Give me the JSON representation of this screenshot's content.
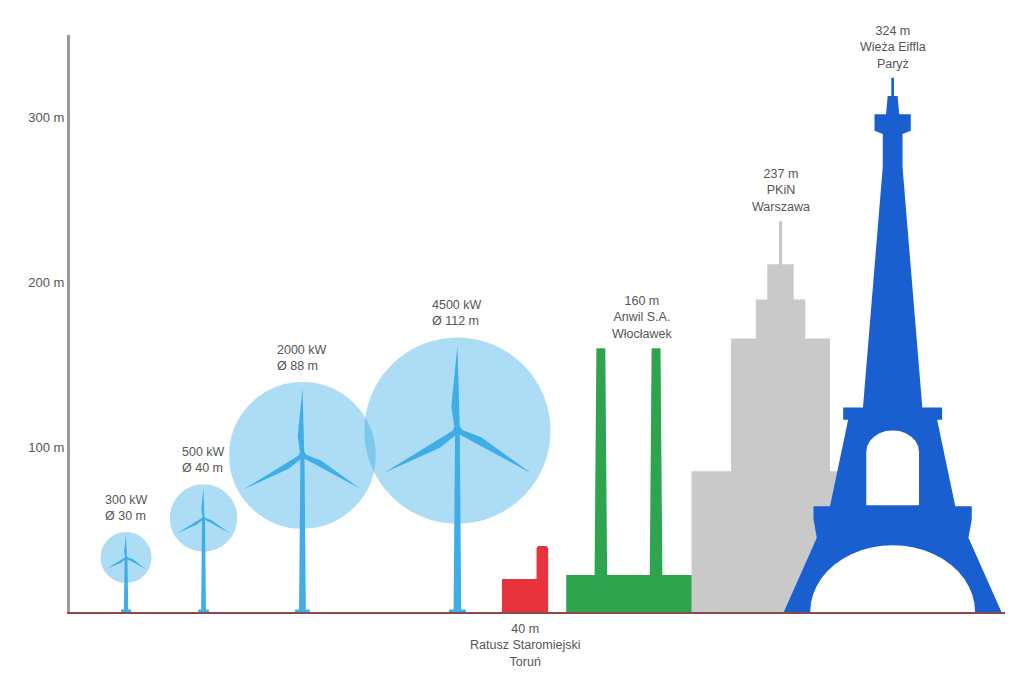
{
  "chart_data": {
    "type": "height_comparison",
    "ylim": [
      0,
      350
    ],
    "yticks": [
      {
        "value": 100,
        "label": "100 m"
      },
      {
        "value": 200,
        "label": "200 m"
      },
      {
        "value": 300,
        "label": "300 m"
      }
    ],
    "grid": false,
    "turbines": [
      {
        "power": "300 kW",
        "diameter": 30,
        "diameter_label": "Ø 30 m",
        "hub_height": 33,
        "color": "#3eaee8"
      },
      {
        "power": "500 kW",
        "diameter": 40,
        "diameter_label": "Ø 40 m",
        "hub_height": 57,
        "color": "#3eaee8"
      },
      {
        "power": "2000 kW",
        "diameter": 88,
        "diameter_label": "Ø 88 m",
        "hub_height": 95,
        "color": "#3eaee8"
      },
      {
        "power": "4500 kW",
        "diameter": 112,
        "diameter_label": "Ø 112 m",
        "hub_height": 110,
        "color": "#3eaee8"
      }
    ],
    "structures": [
      {
        "shape": "town_hall",
        "height": 40,
        "height_label": "40 m",
        "name": "Ratusz Staromiejski",
        "place": "Toruń",
        "color": "#e8323c"
      },
      {
        "shape": "chimneys",
        "height": 160,
        "height_label": "160 m",
        "name": "Anwil S.A.",
        "place": "Włocławek",
        "color": "#2ea44f"
      },
      {
        "shape": "skyscraper",
        "height": 237,
        "height_label": "237 m",
        "name": "PKiN",
        "place": "Warszawa",
        "color": "#c9c9c9"
      },
      {
        "shape": "tower",
        "height": 324,
        "height_label": "324 m",
        "name": "Wieża Eiffla",
        "place": "Paryż",
        "color": "#1a5fcf"
      }
    ]
  }
}
